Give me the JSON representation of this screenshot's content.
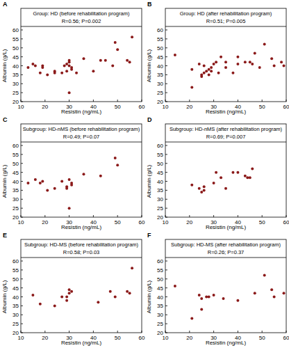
{
  "chart_data": [
    {
      "type": "scatter",
      "label": "A",
      "title": "Group: HD (before rehabilitation program)",
      "subtitle": "R=0.56; P=0.002",
      "x_label": "Resistin (ng/mL)",
      "y_label": "Albumin (g/L)",
      "color": "#8b1a1a",
      "marker": "circle",
      "grid": false,
      "x": [
        13,
        15,
        16,
        18,
        19,
        19,
        21,
        24,
        24,
        27,
        28,
        29,
        29,
        30,
        30,
        30,
        30,
        31,
        31,
        33,
        36,
        40,
        43,
        45,
        48,
        49,
        50,
        54,
        55,
        56
      ],
      "values": [
        39,
        41,
        40,
        36,
        39,
        40,
        35,
        36,
        37,
        36,
        40,
        37,
        41,
        40,
        42,
        43,
        25,
        38,
        39,
        36,
        44,
        37,
        43,
        43,
        40,
        53,
        49,
        43,
        42,
        56
      ],
      "xlim": [
        10,
        60
      ],
      "ylim": [
        20,
        60
      ],
      "xticks": [
        10,
        20,
        30,
        40,
        50,
        60
      ],
      "yticks": [
        20,
        25,
        30,
        35,
        40,
        45,
        50,
        55,
        60
      ]
    },
    {
      "type": "scatter",
      "label": "B",
      "title": "Group: HD (after rehabilitation program)",
      "subtitle": "R=0.51; P=0.005",
      "x_label": "Resistin (ng/mL)",
      "y_label": "Albumin (g/L)",
      "color": "#8b1a1a",
      "marker": "circle",
      "grid": false,
      "x": [
        14,
        21,
        21,
        24,
        25,
        25,
        26,
        26,
        27,
        28,
        28,
        29,
        29,
        30,
        31,
        32,
        33,
        35,
        35,
        38,
        40,
        40,
        43,
        45,
        46,
        47,
        49,
        51,
        54,
        55,
        58,
        59
      ],
      "values": [
        46,
        38,
        28,
        41,
        34,
        35,
        36,
        40,
        37,
        35,
        38,
        37,
        39,
        41,
        42,
        36,
        45,
        39,
        42,
        36,
        45,
        41,
        42,
        42,
        41,
        47,
        39,
        52,
        44,
        40,
        42,
        40
      ],
      "xlim": [
        10,
        60
      ],
      "ylim": [
        20,
        60
      ],
      "xticks": [
        10,
        20,
        30,
        40,
        50,
        60
      ],
      "yticks": [
        20,
        25,
        30,
        35,
        40,
        45,
        50,
        55,
        60
      ]
    },
    {
      "type": "scatter",
      "label": "C",
      "title": "Subgroup: HD-nMS (before rehabilitation program)",
      "subtitle": "R=0.49; P=0.07",
      "x_label": "Resistin (ng/mL)",
      "y_label": "Albumin (g/L)",
      "color": "#8b1a1a",
      "marker": "circle",
      "grid": false,
      "x": [
        13,
        16,
        18,
        19,
        21,
        24,
        27,
        29,
        29,
        30,
        30,
        31,
        31,
        36,
        43,
        49,
        50
      ],
      "values": [
        39,
        41,
        39,
        40,
        35,
        36,
        40,
        37,
        36,
        41,
        25,
        38,
        39,
        44,
        43,
        53,
        49
      ],
      "xlim": [
        10,
        60
      ],
      "ylim": [
        20,
        60
      ],
      "xticks": [
        10,
        20,
        30,
        40,
        50,
        60
      ],
      "yticks": [
        20,
        25,
        30,
        35,
        40,
        45,
        50,
        55,
        60
      ]
    },
    {
      "type": "scatter",
      "label": "D",
      "title": "Subgroup: HD-nMS (after rehabilitation program)",
      "subtitle": "R=0.69; P=0.007",
      "x_label": "Resistin (ng/mL)",
      "y_label": "Albumin (g/L)",
      "color": "#8b1a1a",
      "marker": "circle",
      "grid": false,
      "x": [
        21,
        24,
        25,
        26,
        26,
        30,
        31,
        33,
        35,
        38,
        40,
        43,
        44,
        45,
        46
      ],
      "values": [
        38,
        36,
        34,
        37,
        35,
        39,
        45,
        42,
        36,
        45,
        45,
        43,
        42,
        42,
        47
      ],
      "xlim": [
        10,
        60
      ],
      "ylim": [
        20,
        60
      ],
      "xticks": [
        10,
        20,
        30,
        40,
        50,
        60
      ],
      "yticks": [
        20,
        25,
        30,
        35,
        40,
        45,
        50,
        55,
        60
      ]
    },
    {
      "type": "scatter",
      "label": "E",
      "title": "Subgroup: HD-MS (before rehabilitation program)",
      "subtitle": "R=0.58; P=0.03",
      "x_label": "Resistin (ng/mL)",
      "y_label": "Albumin (g/L)",
      "color": "#8b1a1a",
      "marker": "circle",
      "grid": false,
      "x": [
        15,
        18,
        24,
        27,
        29,
        29,
        30,
        30,
        31,
        42,
        47,
        49,
        54,
        55,
        56
      ],
      "values": [
        41,
        36,
        35,
        40,
        38,
        40,
        44,
        42,
        43,
        37,
        43,
        40,
        43,
        42,
        56
      ],
      "xlim": [
        10,
        60
      ],
      "ylim": [
        20,
        60
      ],
      "xticks": [
        10,
        20,
        30,
        40,
        50,
        60
      ],
      "yticks": [
        20,
        25,
        30,
        35,
        40,
        45,
        50,
        55,
        60
      ]
    },
    {
      "type": "scatter",
      "label": "F",
      "title": "Subgroup: HD-MS (after rehabilitation program)",
      "subtitle": "R=0.26; P=0.37",
      "x_label": "Resistin (ng/mL)",
      "y_label": "Albumin (g/L)",
      "color": "#8b1a1a",
      "marker": "circle",
      "grid": false,
      "x": [
        14,
        21,
        24,
        25,
        25,
        27,
        28,
        30,
        34,
        40,
        47,
        51,
        54,
        55,
        59
      ],
      "values": [
        46,
        28,
        41,
        33,
        39,
        40,
        40,
        41,
        39,
        38,
        42,
        52,
        44,
        40,
        42
      ],
      "xlim": [
        10,
        60
      ],
      "ylim": [
        20,
        60
      ],
      "xticks": [
        10,
        20,
        30,
        40,
        50,
        60
      ],
      "yticks": [
        20,
        25,
        30,
        35,
        40,
        45,
        50,
        55,
        60
      ]
    }
  ]
}
